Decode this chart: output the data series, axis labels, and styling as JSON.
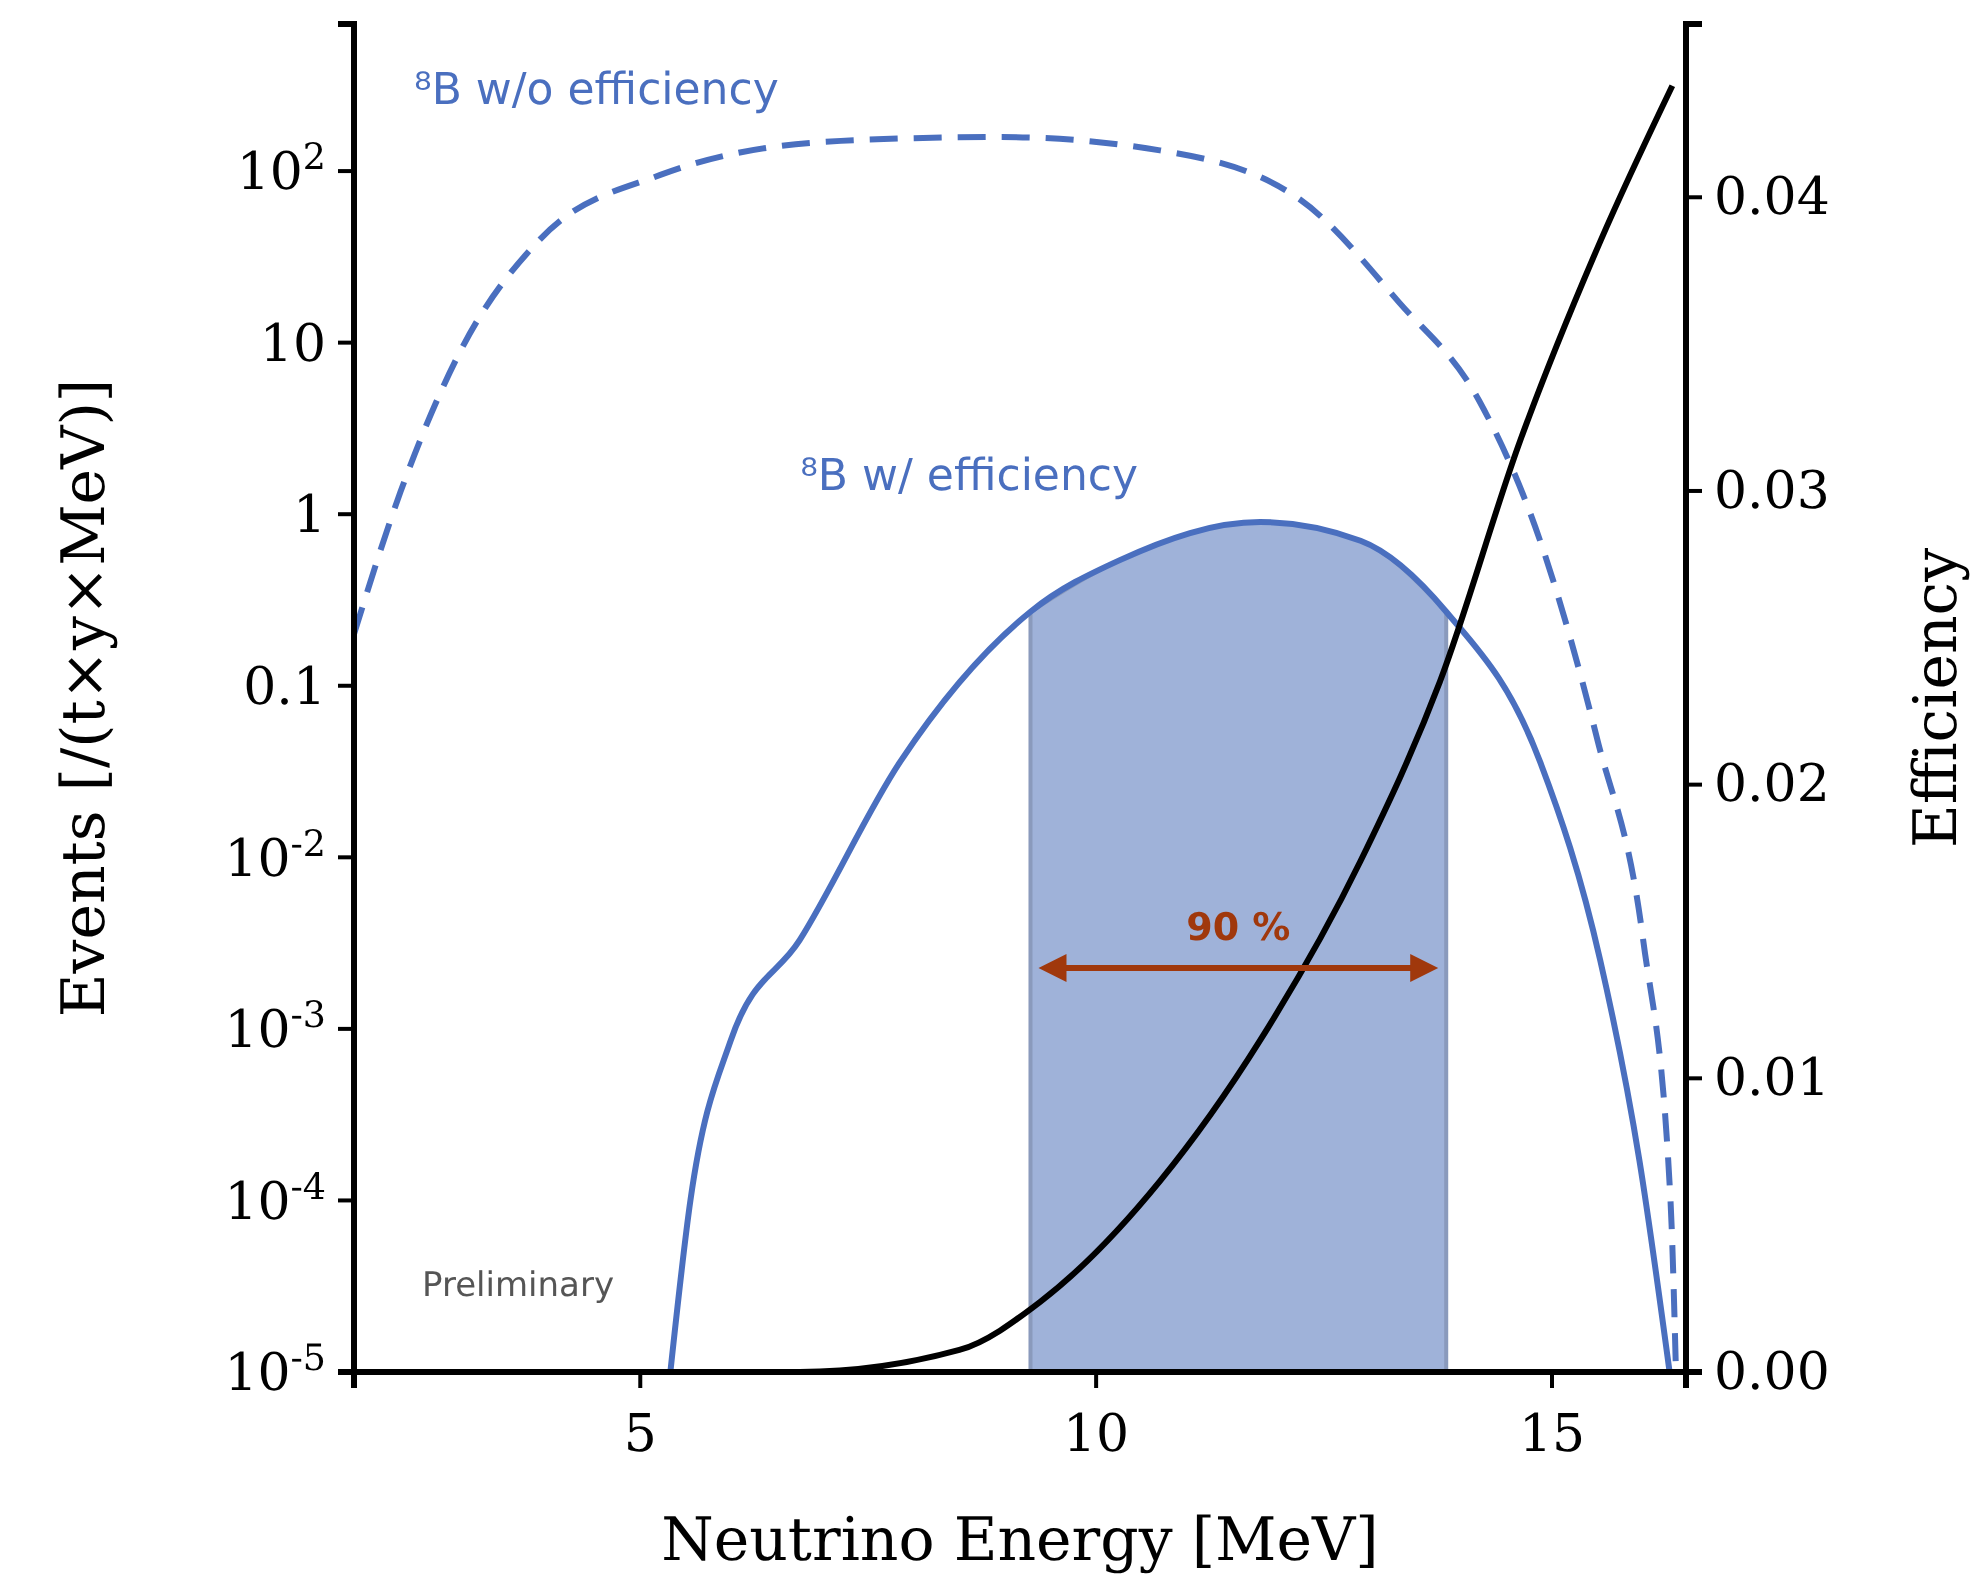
{
  "chart_data": {
    "type": "line",
    "xlabel": "Neutrino Energy [MeV]",
    "ylabel": "Events [/(t×y×MeV)]",
    "y2label": "Efficiency",
    "log": "y",
    "grid": false,
    "xlim": [
      1.86,
      16.47
    ],
    "xticks": [
      5,
      10,
      15
    ],
    "ylim": [
      1e-05,
      720
    ],
    "yticks": [
      {
        "value": 1e-05,
        "label": "10$^{-5}$"
      },
      {
        "value": 0.0001,
        "label": "10$^{-4}$"
      },
      {
        "value": 0.001,
        "label": "10$^{-3}$"
      },
      {
        "value": 0.01,
        "label": "10$^{-2}$"
      },
      0.1,
      1,
      10,
      {
        "value": 100,
        "label": "10$^{2}$"
      }
    ],
    "y2lim": [
      0,
      0.0459
    ],
    "y2ticks": [
      {
        "value": 0,
        "label": "0.00"
      },
      {
        "value": 0.01,
        "label": "0.01"
      },
      {
        "value": 0.02,
        "label": "0.02"
      },
      {
        "value": 0.03,
        "label": "0.03"
      },
      {
        "value": 0.04,
        "label": "0.04"
      }
    ],
    "series": [
      {
        "type": "area",
        "color": "#9fb2d9",
        "x": [
          9.28,
          10.26,
          11.8,
          12.9,
          13.84
        ],
        "values": [
          0.27,
          0.54,
          0.9,
          0.7,
          0.27
        ]
      },
      {
        "name": "⁸B w/o efficiency",
        "color": "#4a6fbf",
        "line_style": "dashed",
        "x": [
          1.86,
          2.37,
          3.03,
          3.9,
          5.22,
          7.2,
          8.95,
          10.7,
          12.24,
          13.33,
          14.2,
          14.87,
          15.5,
          16.0,
          16.3,
          16.36
        ],
        "values": [
          0.2,
          1.35,
          9,
          40,
          95,
          150,
          158,
          132,
          68,
          17,
          4.6,
          0.7,
          0.048,
          0.0033,
          0.0001,
          1e-05
        ]
      },
      {
        "name": "⁸B w/ efficiency",
        "color": "#4a6fbf",
        "line_style": "solid",
        "x": [
          5.33,
          5.55,
          5.99,
          6.75,
          7.85,
          9.28,
          10.26,
          11.8,
          12.9,
          13.84,
          14.87,
          15.53,
          15.96,
          16.29
        ],
        "values": [
          1e-05,
          0.0001,
          0.00085,
          0.0033,
          0.036,
          0.27,
          0.54,
          0.9,
          0.7,
          0.27,
          0.036,
          0.0025,
          0.00017,
          1e-05
        ]
      },
      {
        "color": "#000000",
        "axis": "y2",
        "line_style": "solid",
        "x": [
          5.66,
          6.75,
          8.5,
          9.39,
          10.7,
          11.8,
          12.9,
          13.77,
          14.65,
          15.53,
          16.32
        ],
        "values": [
          0,
          0,
          0.00075,
          0.0024,
          0.0065,
          0.0113,
          0.0174,
          0.0235,
          0.0317,
          0.0385,
          0.0438
        ]
      }
    ],
    "annotations": [
      "90 %",
      "Preliminary"
    ]
  }
}
